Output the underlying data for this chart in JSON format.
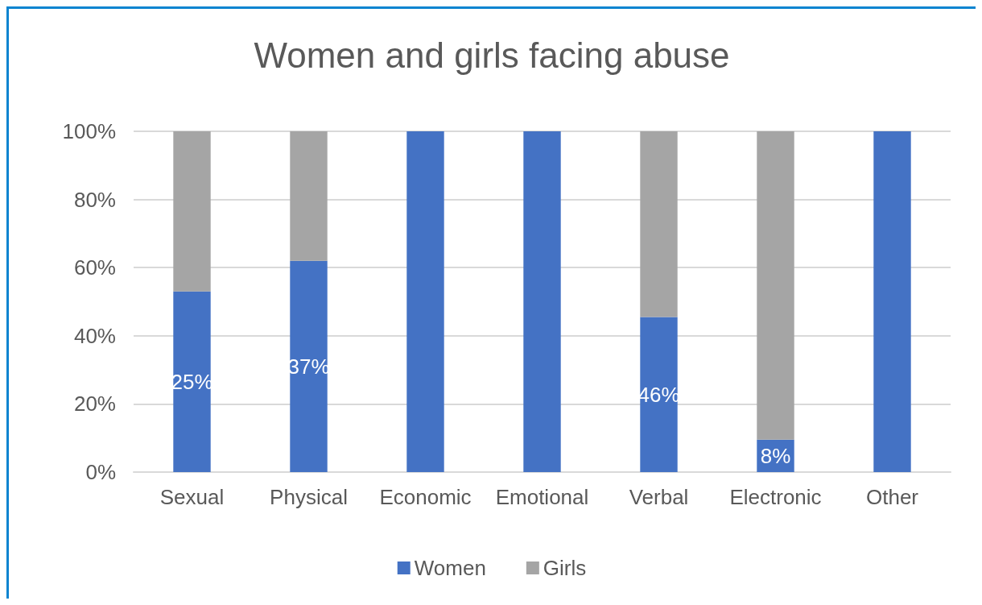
{
  "chart_data": {
    "type": "bar",
    "title": "Women and girls facing abuse",
    "categories": [
      "Sexual",
      "Physical",
      "Economic",
      "Emotional",
      "Verbal",
      "Electronic",
      "Other"
    ],
    "stacked": true,
    "series": [
      {
        "name": "Women",
        "color": "#4472c4",
        "values": [
          53,
          62,
          100,
          100,
          45.5,
          9.5,
          100
        ]
      },
      {
        "name": "Girls",
        "color": "#a5a5a5",
        "values": [
          47,
          38,
          0,
          0,
          54.5,
          90.5,
          0
        ]
      }
    ],
    "ylim": [
      0,
      100
    ],
    "yticks": [
      {
        "value": 0,
        "label": "0%"
      },
      {
        "value": 20,
        "label": "20%"
      },
      {
        "value": 40,
        "label": "40%"
      },
      {
        "value": 60,
        "label": "60%"
      },
      {
        "value": 80,
        "label": "80%"
      },
      {
        "value": 100,
        "label": "100%"
      }
    ],
    "annotations": [
      "25%",
      "37%",
      "46%",
      "8%"
    ],
    "grid": "y",
    "legend": "bottom"
  }
}
